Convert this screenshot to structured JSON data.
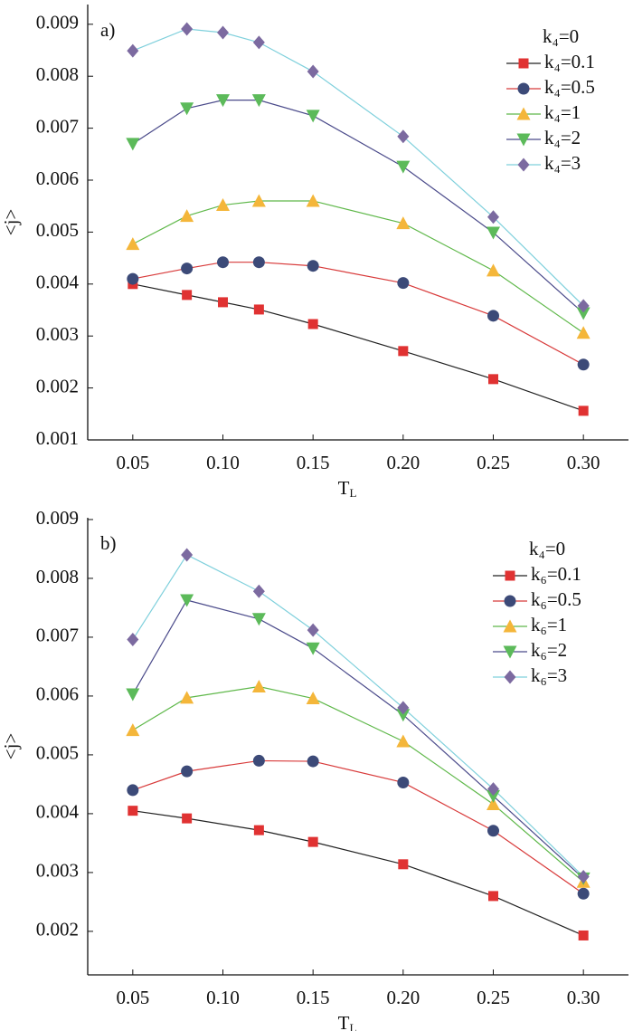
{
  "chart_data": [
    {
      "type": "line",
      "annotation": "a)",
      "ylabel": "<j>",
      "xlabel": {
        "text": "T",
        "sub": "L"
      },
      "legend_title": "k₄=0",
      "legend": "upper right",
      "x": [
        0.05,
        0.08,
        0.1,
        0.12,
        0.15,
        0.2,
        0.25,
        0.3
      ],
      "xlim": [
        0.025,
        0.325
      ],
      "xticks": [
        0.05,
        {
          "value": 0.1,
          "label": "0.10"
        },
        0.15,
        {
          "value": 0.2,
          "label": "0.20"
        },
        0.25,
        {
          "value": 0.3,
          "label": "0.30"
        }
      ],
      "ylim": [
        0.001,
        0.00938
      ],
      "yticks": [
        0.001,
        0.002,
        0.003,
        0.004,
        0.005,
        0.006,
        0.007,
        0.008,
        0.009
      ],
      "series": [
        {
          "name": "k₄=0.1",
          "marker": "square",
          "color": "#e03232",
          "line_color": "#222222",
          "values": [
            0.004,
            0.00379,
            0.00365,
            0.00351,
            0.00323,
            0.00271,
            0.00217,
            0.00156
          ]
        },
        {
          "name": "k₄=0.5",
          "marker": "circle",
          "color": "#3c4a78",
          "line_color": "#d83a3a",
          "values": [
            0.0041,
            0.0043,
            0.00442,
            0.00442,
            0.00435,
            0.00402,
            0.00339,
            0.00245
          ]
        },
        {
          "name": "k₄=1",
          "marker": "triangle-up",
          "color": "#f4b63a",
          "line_color": "#5fb84a",
          "values": [
            0.00477,
            0.00531,
            0.00552,
            0.0056,
            0.0056,
            0.00517,
            0.00426,
            0.00306
          ]
        },
        {
          "name": "k₄=2",
          "marker": "triangle-down",
          "color": "#5cba5a",
          "line_color": "#4a4a8a",
          "values": [
            0.0067,
            0.00738,
            0.00754,
            0.00754,
            0.00724,
            0.00626,
            0.00499,
            0.00344
          ]
        },
        {
          "name": "k₄=3",
          "marker": "diamond",
          "color": "#7c6aa0",
          "line_color": "#7fd0dc",
          "values": [
            0.00849,
            0.00891,
            0.00884,
            0.00865,
            0.00809,
            0.00684,
            0.00529,
            0.00358
          ]
        }
      ]
    },
    {
      "type": "line",
      "annotation": "b)",
      "ylabel": "<j>",
      "xlabel": {
        "text": "T",
        "sub": "L"
      },
      "legend_title": "k₄=0",
      "legend": "upper right",
      "x": [
        0.05,
        0.08,
        0.12,
        0.15,
        0.2,
        0.25,
        0.3
      ],
      "xlim": [
        0.025,
        0.325
      ],
      "xticks": [
        0.05,
        {
          "value": 0.1,
          "label": "0.10"
        },
        0.15,
        {
          "value": 0.2,
          "label": "0.20"
        },
        0.25,
        {
          "value": 0.3,
          "label": "0.30"
        }
      ],
      "ylim": [
        0.00126,
        0.00903
      ],
      "yticks": [
        0.002,
        0.003,
        0.004,
        0.005,
        0.006,
        0.007,
        0.008,
        0.009
      ],
      "series": [
        {
          "name": "k₆=0.1",
          "marker": "square",
          "color": "#e03232",
          "line_color": "#222222",
          "values": [
            0.00405,
            0.00392,
            0.00372,
            0.00352,
            0.00314,
            0.0026,
            0.00193
          ]
        },
        {
          "name": "k₆=0.5",
          "marker": "circle",
          "color": "#3c4a78",
          "line_color": "#d83a3a",
          "values": [
            0.0044,
            0.00472,
            0.0049,
            0.00489,
            0.00453,
            0.00371,
            0.00264
          ]
        },
        {
          "name": "k₆=1",
          "marker": "triangle-up",
          "color": "#f4b63a",
          "line_color": "#5fb84a",
          "values": [
            0.00542,
            0.00597,
            0.00616,
            0.00596,
            0.00523,
            0.00416,
            0.00284
          ]
        },
        {
          "name": "k₆=2",
          "marker": "triangle-down",
          "color": "#5cba5a",
          "line_color": "#4a4a8a",
          "values": [
            0.00603,
            0.00763,
            0.00731,
            0.00681,
            0.00568,
            0.0043,
            0.0029
          ]
        },
        {
          "name": "k₆=3",
          "marker": "diamond",
          "color": "#7c6aa0",
          "line_color": "#7fd0dc",
          "values": [
            0.00696,
            0.0084,
            0.00778,
            0.00712,
            0.0058,
            0.00442,
            0.00293
          ]
        }
      ]
    }
  ]
}
